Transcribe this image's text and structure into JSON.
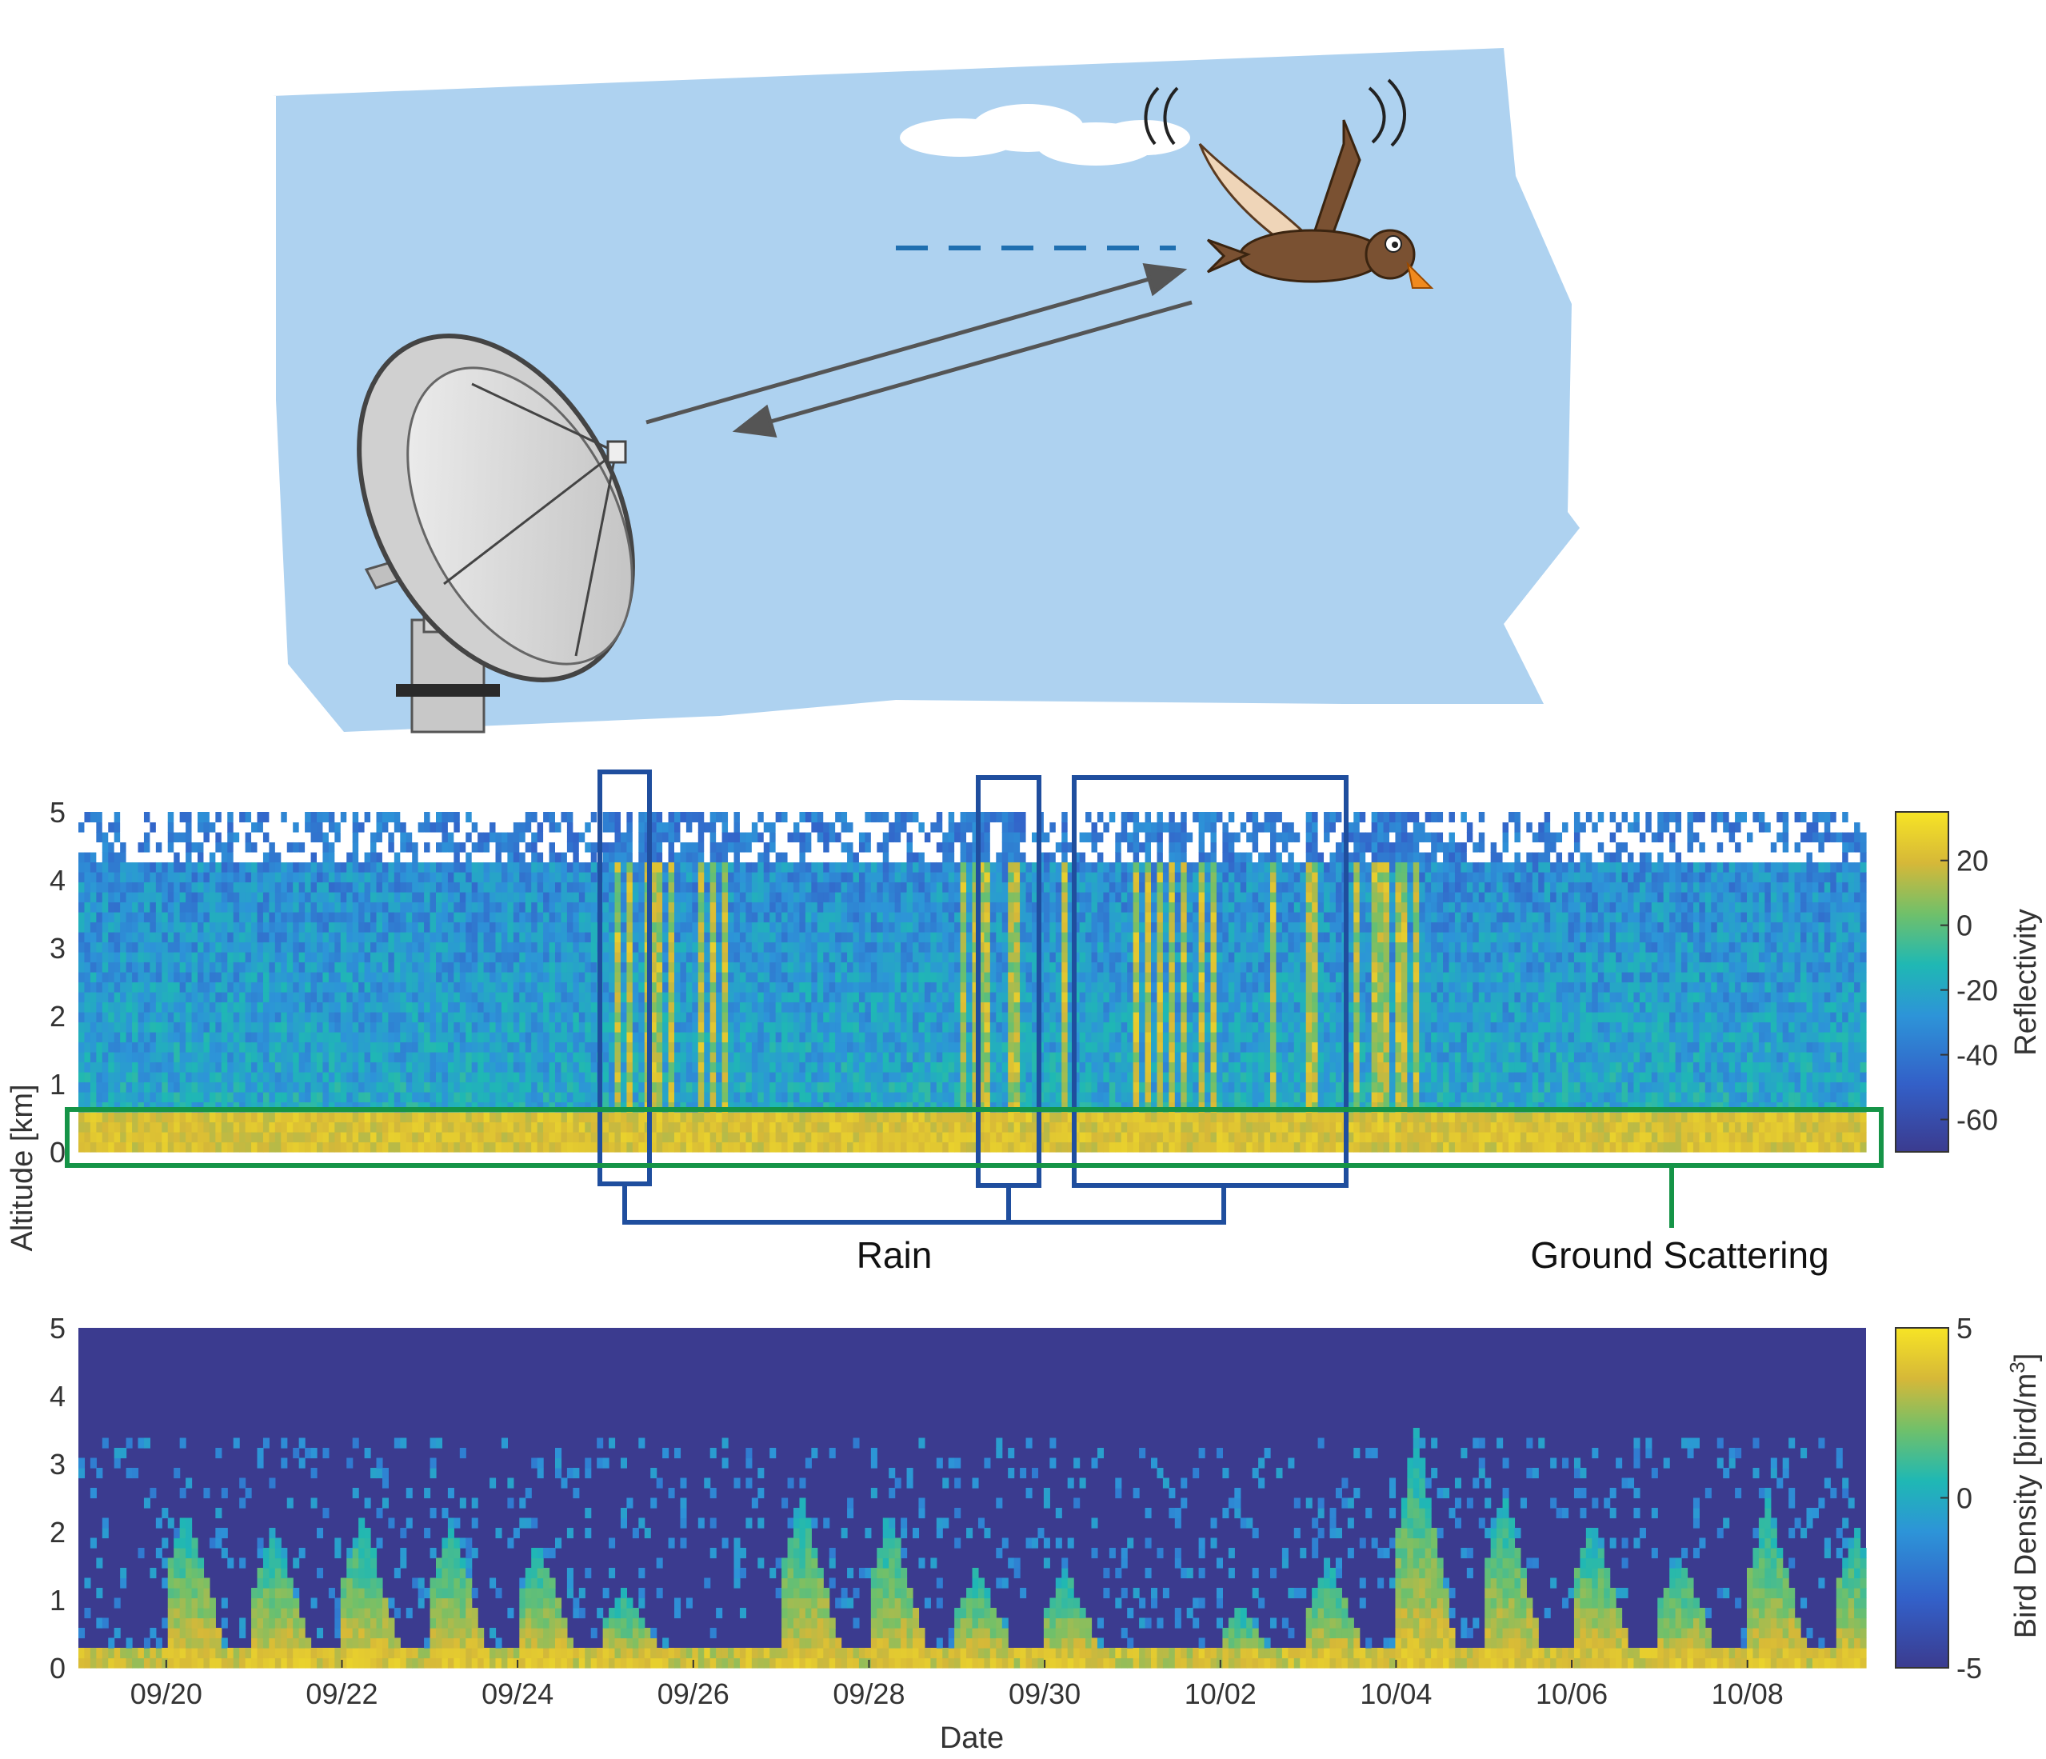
{
  "colors": {
    "sky": "#aed2f0",
    "cloud": "#ffffff",
    "beam": "#1f6fb0",
    "arrow": "#555555",
    "rain_box": "#1f4e9e",
    "ground_box": "#159447",
    "viridis_low": "#3b3b8f",
    "viridis_high": "#f7e425"
  },
  "icons": {
    "radar": "radar-dish-icon",
    "bird": "flying-duck-icon",
    "cloud": "cloud-icon"
  },
  "annotations": {
    "rain": "Rain",
    "ground": "Ground Scattering"
  },
  "shared_xlabel": "Date",
  "shared_ylabel": "Altitude [km]",
  "chart_data": [
    {
      "type": "heatmap",
      "title": "",
      "xlabel": "",
      "ylabel": "Altitude [km]",
      "x_range": [
        "09/19",
        "10/09"
      ],
      "ylim": [
        0,
        5
      ],
      "yticks": [
        "0",
        "1",
        "2",
        "3",
        "4",
        "5"
      ],
      "colorbar": {
        "label": "Reflectivity",
        "ticks": [
          "20",
          "0",
          "-20",
          "-40",
          "-60"
        ],
        "range": [
          -70,
          35
        ]
      },
      "rain_periods": [
        [
          "09/25",
          "09/26"
        ],
        [
          "09/29",
          "09/30"
        ],
        [
          "10/01",
          "10/04"
        ]
      ],
      "ground_scattering_altitude_km": [
        0,
        0.6
      ]
    },
    {
      "type": "heatmap",
      "title": "",
      "xlabel": "Date",
      "ylabel": "",
      "x_range": [
        "09/19",
        "10/09"
      ],
      "xticks": [
        "09/20",
        "09/22",
        "09/24",
        "09/26",
        "09/28",
        "09/30",
        "10/02",
        "10/04",
        "10/06",
        "10/08"
      ],
      "ylim": [
        0,
        5
      ],
      "yticks": [
        "0",
        "1",
        "2",
        "3",
        "4",
        "5"
      ],
      "colorbar": {
        "label": "Bird Density [bird/m",
        "label_sup": "3",
        "label_end": "]",
        "ticks": [
          "5",
          "0",
          "-5"
        ],
        "range": [
          -5,
          5
        ]
      },
      "nightly_peaks": [
        {
          "date": "09/20",
          "height_km": 2.4
        },
        {
          "date": "09/21",
          "height_km": 2.1
        },
        {
          "date": "09/22",
          "height_km": 2.3
        },
        {
          "date": "09/23",
          "height_km": 2.2
        },
        {
          "date": "09/24",
          "height_km": 1.9
        },
        {
          "date": "09/25",
          "height_km": 1.2
        },
        {
          "date": "09/27",
          "height_km": 2.6
        },
        {
          "date": "09/28",
          "height_km": 2.3
        },
        {
          "date": "09/29",
          "height_km": 1.5
        },
        {
          "date": "09/30",
          "height_km": 1.5
        },
        {
          "date": "10/02",
          "height_km": 0.9
        },
        {
          "date": "10/03",
          "height_km": 1.6
        },
        {
          "date": "10/04",
          "height_km": 3.5
        },
        {
          "date": "10/05",
          "height_km": 2.6
        },
        {
          "date": "10/06",
          "height_km": 2.2
        },
        {
          "date": "10/07",
          "height_km": 1.7
        },
        {
          "date": "10/08",
          "height_km": 2.5
        },
        {
          "date": "10/09",
          "height_km": 2.1
        }
      ]
    }
  ]
}
